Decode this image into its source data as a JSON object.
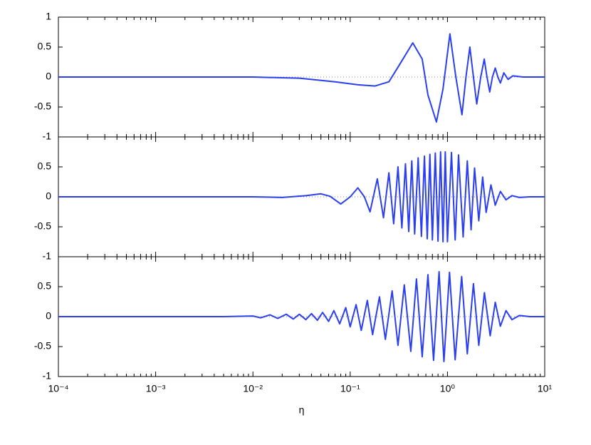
{
  "chart_data": [
    {
      "type": "line",
      "xlog": true,
      "xlim": [
        0.0001,
        10
      ],
      "ylim": [
        -1,
        1
      ],
      "yticks": [
        -1,
        -0.5,
        0,
        0.5,
        1
      ],
      "x": [
        0.0001,
        0.01,
        0.03,
        0.07,
        0.12,
        0.18,
        0.25,
        0.32,
        0.44,
        0.55,
        0.63,
        0.77,
        0.9,
        1.06,
        1.22,
        1.41,
        1.55,
        1.7,
        1.85,
        2.0,
        2.2,
        2.39,
        2.55,
        2.72,
        2.9,
        3.1,
        3.3,
        3.5,
        3.8,
        4.2,
        4.7,
        6,
        10
      ],
      "series": [
        {
          "color": "#2b3ff0",
          "values": [
            0,
            0,
            -0.02,
            -0.08,
            -0.13,
            -0.15,
            -0.08,
            0.2,
            0.57,
            0.3,
            -0.3,
            -0.75,
            -0.2,
            0.72,
            0,
            -0.63,
            0,
            0.5,
            0,
            -0.45,
            0,
            0.3,
            0,
            -0.25,
            0,
            0.15,
            0,
            -0.1,
            0.07,
            -0.04,
            0.02,
            0,
            0
          ]
        }
      ]
    },
    {
      "type": "line",
      "xlog": true,
      "xlim": [
        0.0001,
        10
      ],
      "ylim": [
        -1,
        1
      ],
      "yticks": [
        -1,
        -0.5,
        0,
        0.5
      ],
      "x": [
        0.0001,
        0.01,
        0.02,
        0.035,
        0.05,
        0.062,
        0.08,
        0.1,
        0.12,
        0.14,
        0.16,
        0.19,
        0.22,
        0.25,
        0.28,
        0.31,
        0.34,
        0.37,
        0.4,
        0.43,
        0.46,
        0.5,
        0.54,
        0.58,
        0.62,
        0.66,
        0.7,
        0.75,
        0.8,
        0.85,
        0.9,
        0.95,
        1.0,
        1.1,
        1.2,
        1.3,
        1.45,
        1.6,
        1.75,
        1.9,
        2.1,
        2.3,
        2.5,
        2.8,
        3.1,
        3.5,
        4,
        4.6,
        5.5,
        7,
        10
      ],
      "series": [
        {
          "color": "#2b3ff0",
          "values": [
            0,
            0,
            -0.01,
            0.02,
            0.05,
            0.01,
            -0.12,
            0,
            0.15,
            0,
            -0.25,
            0.3,
            -0.35,
            0.4,
            -0.45,
            0.5,
            -0.52,
            0.55,
            -0.58,
            0.6,
            -0.62,
            0.65,
            -0.66,
            0.68,
            -0.7,
            0.71,
            -0.72,
            0.73,
            -0.74,
            0.75,
            -0.75,
            0.75,
            -0.75,
            0.74,
            -0.72,
            0.7,
            -0.67,
            0.6,
            -0.55,
            0.48,
            -0.4,
            0.33,
            -0.26,
            0.2,
            -0.14,
            0.09,
            -0.05,
            0.02,
            -0.01,
            0,
            0
          ]
        }
      ]
    },
    {
      "type": "line",
      "xlog": true,
      "xlim": [
        0.0001,
        10
      ],
      "ylim": [
        -1,
        1
      ],
      "yticks": [
        -1,
        -0.5,
        0,
        0.5
      ],
      "xlabel": "η",
      "xticks": [
        {
          "value": 0.0001,
          "label": "10⁻⁴"
        },
        {
          "value": 0.001,
          "label": "10⁻³"
        },
        {
          "value": 0.01,
          "label": "10⁻²"
        },
        {
          "value": 0.1,
          "label": "10⁻¹"
        },
        {
          "value": 1,
          "label": "10⁰"
        },
        {
          "value": 10,
          "label": "10¹"
        }
      ],
      "x": [
        0.0001,
        0.005,
        0.01,
        0.012,
        0.015,
        0.018,
        0.022,
        0.026,
        0.03,
        0.035,
        0.04,
        0.046,
        0.052,
        0.06,
        0.068,
        0.078,
        0.09,
        0.1,
        0.115,
        0.13,
        0.15,
        0.17,
        0.2,
        0.23,
        0.27,
        0.31,
        0.36,
        0.42,
        0.48,
        0.55,
        0.63,
        0.72,
        0.82,
        0.92,
        1.05,
        1.2,
        1.4,
        1.6,
        1.85,
        2.1,
        2.4,
        2.75,
        3.1,
        3.5,
        4,
        4.6,
        5.5,
        7,
        10
      ],
      "series": [
        {
          "color": "#2b3ff0",
          "values": [
            0,
            0,
            0.01,
            -0.02,
            0.03,
            -0.03,
            0.04,
            -0.04,
            0.04,
            -0.05,
            0.05,
            -0.06,
            0.07,
            -0.08,
            0.1,
            -0.12,
            0.15,
            -0.17,
            0.2,
            -0.23,
            0.27,
            -0.3,
            0.33,
            -0.38,
            0.43,
            -0.48,
            0.53,
            -0.58,
            0.63,
            -0.67,
            0.7,
            -0.73,
            0.75,
            -0.75,
            0.74,
            -0.72,
            0.67,
            -0.62,
            0.55,
            -0.48,
            0.4,
            -0.32,
            0.24,
            -0.16,
            0.1,
            -0.05,
            0.02,
            0,
            0
          ]
        }
      ]
    }
  ]
}
